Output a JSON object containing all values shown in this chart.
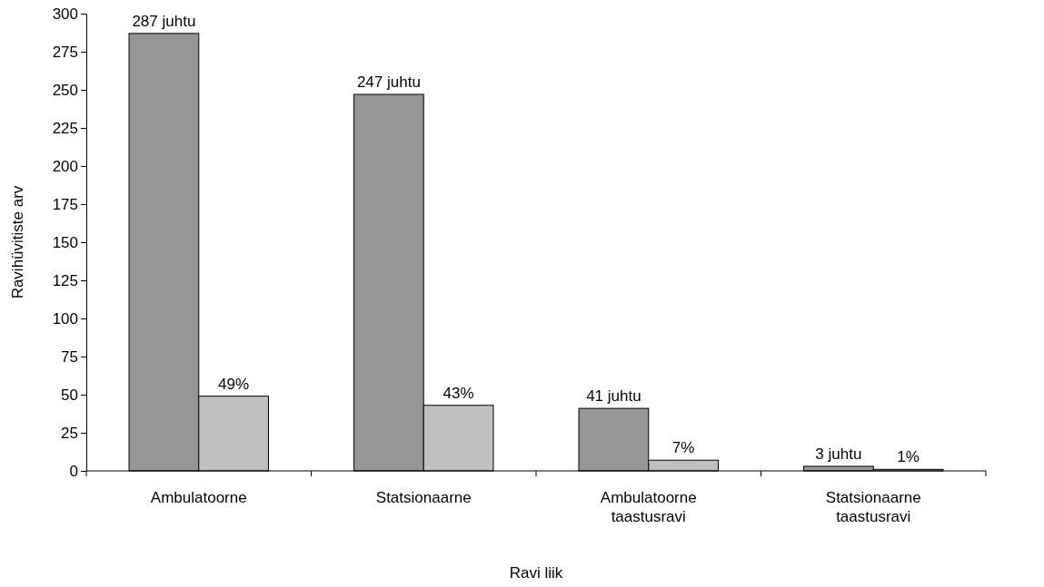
{
  "chart_data": {
    "type": "bar",
    "xlabel": "Ravi liik",
    "ylabel": "Ravihüvitiste arv",
    "categories": [
      "Ambulatoorne",
      "Statsionaarne",
      "Ambulatoorne taastusravi",
      "Statsionaarne taastusravi"
    ],
    "series": [
      {
        "color": "#969696",
        "values": [
          287,
          247,
          41,
          3
        ],
        "value_labels": [
          "287 juhtu",
          "247 juhtu",
          "41 juhtu",
          "3 juhtu"
        ]
      },
      {
        "color": "#c0c0c0",
        "values": [
          49,
          43,
          7,
          1
        ],
        "value_labels": [
          "49%",
          "43%",
          "7%",
          "1%"
        ]
      }
    ],
    "ylim": [
      0,
      300
    ],
    "yticks": [
      0,
      25,
      50,
      75,
      100,
      125,
      150,
      175,
      200,
      225,
      250,
      275,
      300
    ],
    "grid": false
  }
}
